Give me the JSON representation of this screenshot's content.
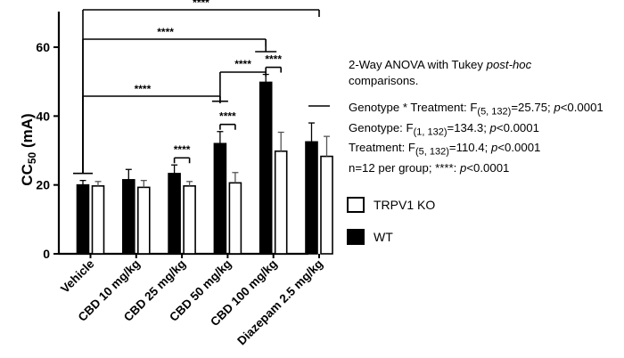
{
  "chart_data": {
    "type": "bar",
    "ylabel_main": "CC",
    "ylabel_sub": "50",
    "ylabel_unit": " (mA)",
    "ylim": [
      0,
      60
    ],
    "yticks": [
      0,
      20,
      40,
      60
    ],
    "categories": [
      "Vehicle",
      "CBD 10 mg/kg",
      "CBD 25 mg/kg",
      "CBD 50 mg/kg",
      "CBD 100 mg/kg",
      "Diazepam 2.5 mg/kg"
    ],
    "series": [
      {
        "name": "WT",
        "color": "#000000",
        "values": [
          20.0,
          21.5,
          23.3,
          32.0,
          49.8,
          32.5
        ],
        "errors": [
          1.3,
          3.0,
          2.5,
          3.5,
          2.3,
          5.5
        ]
      },
      {
        "name": "TRPV1 KO",
        "color": "#ffffff",
        "values": [
          19.7,
          19.3,
          19.7,
          20.6,
          29.8,
          28.3
        ],
        "errors": [
          1.3,
          2.0,
          1.3,
          3.0,
          5.5,
          5.8
        ]
      }
    ],
    "significance": [
      {
        "label": "****",
        "type": "within",
        "category": 2
      },
      {
        "label": "****",
        "type": "within",
        "category": 3
      },
      {
        "label": "****",
        "type": "within",
        "category": 4
      },
      {
        "label": "****",
        "type": "wt_vs_vehicle",
        "category": 3
      },
      {
        "label": "****",
        "type": "wt_vs_vehicle",
        "category": 4
      },
      {
        "label": "****",
        "type": "wt_vs_vehicle",
        "category": 5
      },
      {
        "label": "****",
        "type": "wt_vs_wt",
        "from": 3,
        "to": 4
      }
    ]
  },
  "stats": {
    "line1a": "2-Way ANOVA with Tukey ",
    "line1b": "post-hoc",
    "line2": "comparisons.",
    "g1_pre": "Genotype * Treatment: F",
    "g1_sub": "(5, 132)",
    "g1_mid": "=25.75; ",
    "p_italic": "p",
    "g1_post": "<0.0001",
    "g2_pre": "Genotype: F",
    "g2_sub": "(1, 132)",
    "g2_mid": "=134.3; ",
    "g2_post": "<0.0001",
    "g3_pre": "Treatment: F",
    "g3_sub": "(5, 132)",
    "g3_mid": "=110.4; ",
    "g3_post": "<0.0001",
    "n_line_pre": "n=12 per group; ****: ",
    "n_line_post": "<0.0001"
  },
  "legend": {
    "ko_label": "TRPV1 KO",
    "wt_label": "WT"
  }
}
